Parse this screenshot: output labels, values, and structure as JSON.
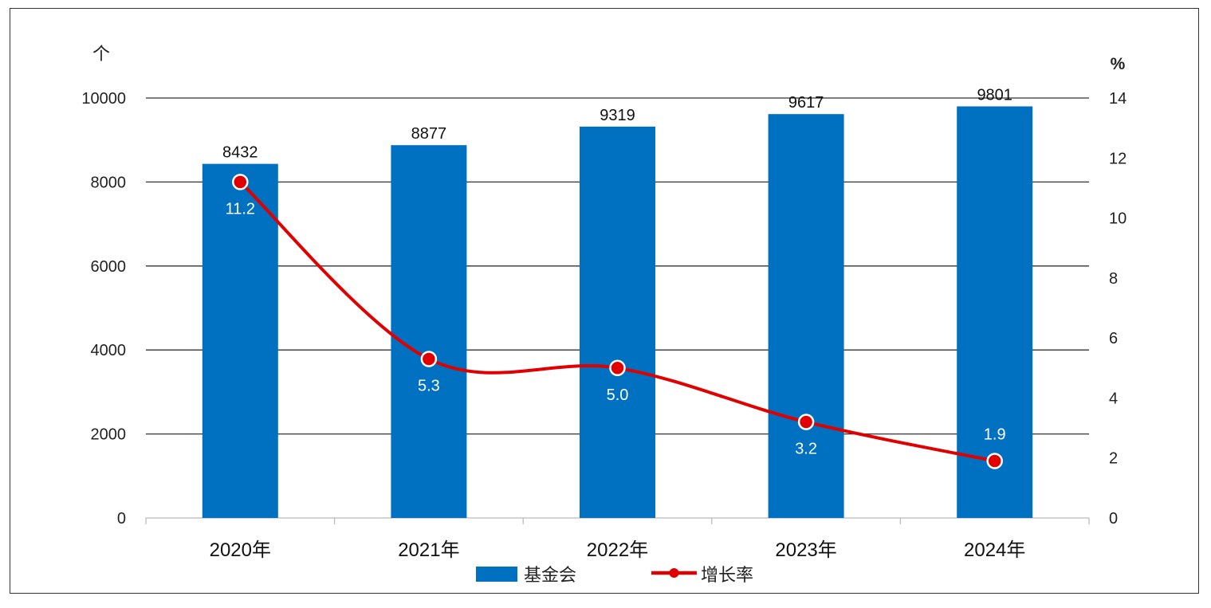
{
  "chart_data": {
    "type": "bar",
    "categories": [
      "2020年",
      "2021年",
      "2022年",
      "2023年",
      "2024年"
    ],
    "series": [
      {
        "name": "基金会",
        "type": "bar",
        "axis": "left",
        "values": [
          8432,
          8877,
          9319,
          9617,
          9801
        ],
        "color": "#0070C0"
      },
      {
        "name": "增长率",
        "type": "line",
        "axis": "right",
        "values": [
          11.2,
          5.3,
          5.0,
          3.2,
          1.9
        ],
        "labels": [
          "11.2",
          "5.3",
          "5.0",
          "3.2",
          "1.9"
        ],
        "color": "#E00000"
      }
    ],
    "ylabel_left": "个",
    "ylabel_right": "%",
    "ylim_left": [
      0,
      10000
    ],
    "yticks_left": [
      0,
      2000,
      4000,
      6000,
      8000,
      10000
    ],
    "ylim_right": [
      0,
      14
    ],
    "yticks_right": [
      0,
      2,
      4,
      6,
      8,
      10,
      12,
      14
    ],
    "grid": true,
    "legend": "bottom"
  }
}
